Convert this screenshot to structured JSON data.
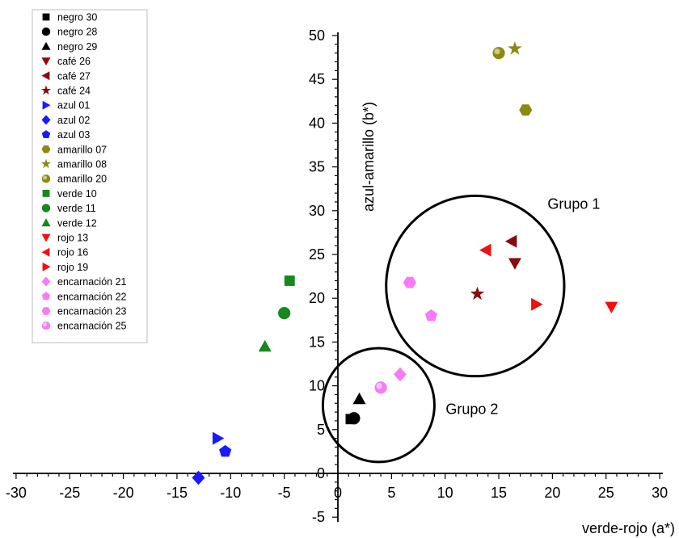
{
  "chart_data": {
    "type": "scatter",
    "xlabel": "verde-rojo (a*)",
    "ylabel": "azul-amarillo (b*)",
    "xlim": [
      -30,
      30
    ],
    "ylim": [
      -5,
      50
    ],
    "x_ticks": [
      "-30",
      "-25",
      "-20",
      "-15",
      "-10",
      "-5",
      "0",
      "5",
      "10",
      "15",
      "20",
      "25",
      "30"
    ],
    "y_ticks": [
      "-5",
      "0",
      "5",
      "10",
      "15",
      "20",
      "25",
      "30",
      "35",
      "40",
      "45",
      "50"
    ],
    "legend_position": "top-left",
    "series": [
      {
        "name": "negro 30",
        "marker": "square",
        "color": "#000000",
        "points": [
          [
            1.2,
            6.2
          ]
        ]
      },
      {
        "name": "negro 28",
        "marker": "circle",
        "color": "#000000",
        "points": [
          [
            1.5,
            6.3
          ]
        ]
      },
      {
        "name": "negro 29",
        "marker": "triangle-up",
        "color": "#000000",
        "points": [
          [
            2.0,
            8.5
          ]
        ]
      },
      {
        "name": "café 26",
        "marker": "triangle-down",
        "color": "#8B0A0A",
        "points": [
          [
            16.5,
            24.0
          ]
        ]
      },
      {
        "name": "café 27",
        "marker": "triangle-left",
        "color": "#8B0A0A",
        "points": [
          [
            16.2,
            26.5
          ]
        ]
      },
      {
        "name": "café 24",
        "marker": "star",
        "color": "#8B0A0A",
        "points": [
          [
            13.0,
            20.5
          ]
        ]
      },
      {
        "name": "azul 01",
        "marker": "triangle-right",
        "color": "#1A1AFF",
        "points": [
          [
            -11.2,
            4.0
          ]
        ]
      },
      {
        "name": "azul 02",
        "marker": "diamond",
        "color": "#1A1AFF",
        "points": [
          [
            -13.0,
            -0.5
          ]
        ]
      },
      {
        "name": "azul 03",
        "marker": "pentagon",
        "color": "#1A1AFF",
        "points": [
          [
            -10.5,
            2.5
          ]
        ]
      },
      {
        "name": "amarillo 07",
        "marker": "hexagon",
        "color": "#8B8A10",
        "points": [
          [
            17.5,
            41.5
          ]
        ]
      },
      {
        "name": "amarillo 08",
        "marker": "star",
        "color": "#8B8A10",
        "points": [
          [
            16.5,
            48.5
          ]
        ]
      },
      {
        "name": "amarillo 20",
        "marker": "shaded-circle",
        "color": "#8B8A10",
        "points": [
          [
            15.0,
            48.0
          ]
        ]
      },
      {
        "name": "verde 10",
        "marker": "square",
        "color": "#15891B",
        "points": [
          [
            -4.5,
            22.0
          ]
        ]
      },
      {
        "name": "verde 11",
        "marker": "circle",
        "color": "#15891B",
        "points": [
          [
            -5.0,
            18.3
          ]
        ]
      },
      {
        "name": "verde 12",
        "marker": "triangle-up",
        "color": "#15891B",
        "points": [
          [
            -6.8,
            14.5
          ]
        ]
      },
      {
        "name": "rojo 13",
        "marker": "triangle-down",
        "color": "#F01010",
        "points": [
          [
            25.5,
            19.0
          ]
        ]
      },
      {
        "name": "rojo 16",
        "marker": "triangle-left",
        "color": "#F01010",
        "points": [
          [
            13.8,
            25.5
          ]
        ]
      },
      {
        "name": "rojo 19",
        "marker": "triangle-right",
        "color": "#F01010",
        "points": [
          [
            18.5,
            19.3
          ]
        ]
      },
      {
        "name": "encarnación 21",
        "marker": "diamond",
        "color": "#F77BF7",
        "points": [
          [
            5.8,
            11.3
          ]
        ]
      },
      {
        "name": "encarnación 22",
        "marker": "pentagon",
        "color": "#F77BF7",
        "points": [
          [
            8.7,
            18.0
          ]
        ]
      },
      {
        "name": "encarnación 23",
        "marker": "hexagon",
        "color": "#F77BF7",
        "points": [
          [
            6.7,
            21.8
          ]
        ]
      },
      {
        "name": "encarnación 25",
        "marker": "shaded-circle",
        "color": "#F77BF7",
        "points": [
          [
            4.0,
            9.8
          ]
        ]
      }
    ],
    "annotations": [
      {
        "text": "Grupo 1",
        "x": 22,
        "y": 30.2
      },
      {
        "text": "Grupo 2",
        "x": 12.5,
        "y": 6.8
      }
    ],
    "clusters": [
      {
        "cx": 12.8,
        "cy": 21.4,
        "rx": 8.3,
        "ry": 10.3
      },
      {
        "cx": 3.8,
        "cy": 7.8,
        "rx": 5.2,
        "ry": 6.5
      }
    ]
  }
}
